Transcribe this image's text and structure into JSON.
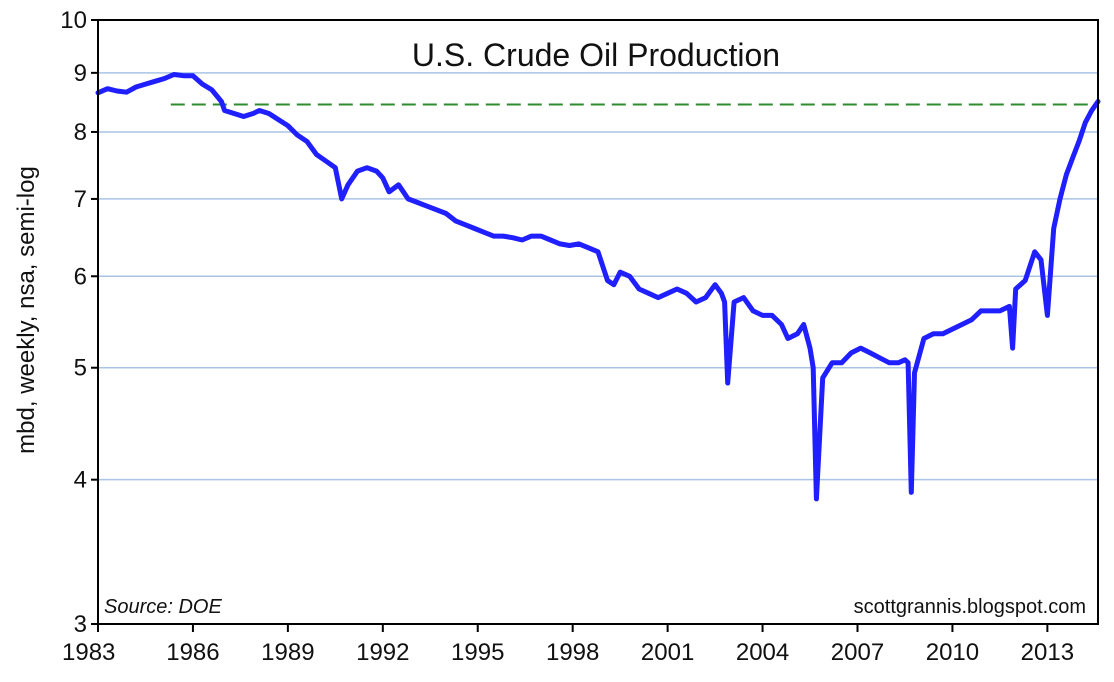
{
  "chart_data": {
    "type": "line",
    "title": "U.S. Crude Oil Production",
    "xlabel": "",
    "ylabel": "mbd, weekly, nsa, semi-log",
    "yscale": "log",
    "ylim": [
      3,
      10
    ],
    "xlim": [
      1983,
      2014.6
    ],
    "yticks": [
      3,
      4,
      5,
      6,
      7,
      8,
      9,
      10
    ],
    "xticks": [
      1983,
      1986,
      1989,
      1992,
      1995,
      1998,
      2001,
      2004,
      2007,
      2010,
      2013
    ],
    "grid": true,
    "colors": {
      "series": "#1f1fff",
      "reference": "#2e8b2e",
      "grid": "#a9c4e6",
      "axis": "#000000"
    },
    "source_note": "Source: DOE",
    "credit": "scottgrannis.blogspot.com",
    "reference_line": {
      "y": 8.45,
      "x_start": 1985.3,
      "x_end": 2014.6,
      "style": "dashed"
    },
    "series": [
      {
        "x": [
          1983.0,
          1983.3,
          1983.6,
          1983.9,
          1984.2,
          1984.5,
          1984.8,
          1985.1,
          1985.4,
          1985.7,
          1986.0,
          1986.3,
          1986.6,
          1986.9,
          1987.0,
          1987.3,
          1987.6,
          1987.9,
          1988.1,
          1988.4,
          1988.7,
          1989.0,
          1989.3,
          1989.6,
          1989.9,
          1990.2,
          1990.5,
          1990.7,
          1990.9,
          1991.2,
          1991.5,
          1991.8,
          1992.0,
          1992.2,
          1992.5,
          1992.8,
          1993.1,
          1993.4,
          1993.7,
          1994.0,
          1994.3,
          1994.6,
          1994.9,
          1995.2,
          1995.5,
          1995.8,
          1996.1,
          1996.4,
          1996.7,
          1997.0,
          1997.3,
          1997.6,
          1997.9,
          1998.2,
          1998.5,
          1998.8,
          1999.1,
          1999.3,
          1999.5,
          1999.8,
          2000.1,
          2000.4,
          2000.7,
          2001.0,
          2001.3,
          2001.6,
          2001.9,
          2002.2,
          2002.5,
          2002.7,
          2002.8,
          2002.9,
          2003.1,
          2003.4,
          2003.7,
          2004.0,
          2004.3,
          2004.6,
          2004.8,
          2005.1,
          2005.3,
          2005.5,
          2005.6,
          2005.7,
          2005.9,
          2006.2,
          2006.5,
          2006.8,
          2007.1,
          2007.4,
          2007.7,
          2008.0,
          2008.3,
          2008.5,
          2008.6,
          2008.7,
          2008.8,
          2009.1,
          2009.4,
          2009.7,
          2010.0,
          2010.3,
          2010.6,
          2010.9,
          2011.2,
          2011.5,
          2011.8,
          2011.9,
          2012.0,
          2012.3,
          2012.6,
          2012.8,
          2013.0,
          2013.2,
          2013.4,
          2013.6,
          2013.8,
          2014.0,
          2014.2,
          2014.4,
          2014.6
        ],
        "values": [
          8.65,
          8.72,
          8.68,
          8.66,
          8.75,
          8.8,
          8.85,
          8.9,
          8.97,
          8.95,
          8.95,
          8.8,
          8.7,
          8.5,
          8.35,
          8.3,
          8.25,
          8.3,
          8.35,
          8.3,
          8.2,
          8.1,
          7.95,
          7.85,
          7.65,
          7.55,
          7.45,
          7.0,
          7.2,
          7.4,
          7.45,
          7.4,
          7.3,
          7.1,
          7.2,
          7.0,
          6.95,
          6.9,
          6.85,
          6.8,
          6.7,
          6.65,
          6.6,
          6.55,
          6.5,
          6.5,
          6.48,
          6.45,
          6.5,
          6.5,
          6.45,
          6.4,
          6.38,
          6.4,
          6.35,
          6.3,
          5.95,
          5.9,
          6.05,
          6.0,
          5.85,
          5.8,
          5.75,
          5.8,
          5.85,
          5.8,
          5.7,
          5.75,
          5.9,
          5.8,
          5.7,
          4.85,
          5.7,
          5.75,
          5.6,
          5.55,
          5.55,
          5.45,
          5.3,
          5.35,
          5.45,
          5.2,
          5.0,
          3.85,
          4.9,
          5.05,
          5.05,
          5.15,
          5.2,
          5.15,
          5.1,
          5.05,
          5.05,
          5.08,
          5.05,
          3.9,
          4.95,
          5.3,
          5.35,
          5.35,
          5.4,
          5.45,
          5.5,
          5.6,
          5.6,
          5.6,
          5.65,
          5.2,
          5.85,
          5.95,
          6.3,
          6.2,
          5.55,
          6.6,
          7.0,
          7.35,
          7.6,
          7.85,
          8.15,
          8.35,
          8.5
        ]
      }
    ]
  }
}
